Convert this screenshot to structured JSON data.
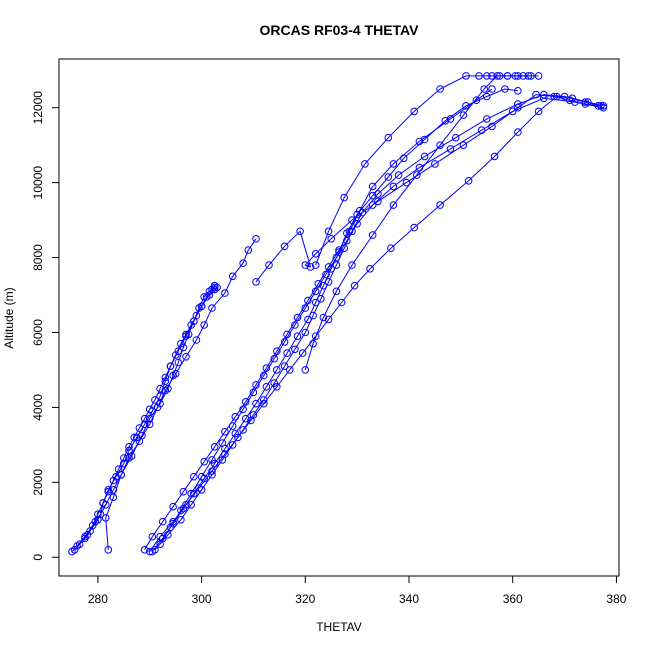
{
  "chart_data": {
    "type": "line",
    "title": "ORCAS RF03-4 THETAV",
    "xlabel": "THETAV",
    "ylabel": "Altitude (m)",
    "xlim": [
      272.5,
      380.5
    ],
    "ylim": [
      -500,
      13300
    ],
    "xticks": [
      280,
      300,
      320,
      340,
      360,
      380
    ],
    "yticks": [
      0,
      2000,
      4000,
      6000,
      8000,
      10000,
      12000
    ],
    "grid": false,
    "marker": "open-circle",
    "color": "#0000ff",
    "series": [
      {
        "x": [
          275,
          276.5,
          277.5,
          278.5,
          279.5,
          280.5,
          281,
          282,
          283,
          284,
          285,
          286,
          287,
          288,
          289,
          290,
          291,
          292,
          293,
          294,
          295,
          296,
          297,
          298,
          299,
          300,
          301,
          302,
          302.5
        ],
        "y": [
          150,
          350,
          500,
          700,
          950,
          1150,
          1450,
          1750,
          2050,
          2350,
          2650,
          2950,
          3200,
          3450,
          3700,
          3950,
          4200,
          4500,
          4800,
          5100,
          5400,
          5700,
          5950,
          6200,
          6450,
          6700,
          6950,
          7150,
          7250
        ]
      },
      {
        "x": [
          276,
          277.5,
          279,
          280,
          281,
          282,
          283.5,
          285,
          286,
          287.5,
          289,
          290.5,
          292,
          293,
          294,
          295.5,
          297,
          298.5,
          300,
          301.5,
          302.5
        ],
        "y": [
          300,
          550,
          850,
          1150,
          1450,
          1800,
          2150,
          2500,
          2850,
          3200,
          3550,
          3900,
          4300,
          4700,
          5100,
          5500,
          5900,
          6300,
          6700,
          7000,
          7200
        ]
      },
      {
        "x": [
          275.5,
          278,
          280,
          281.5,
          283,
          284.5,
          286,
          288,
          290,
          291.5,
          293,
          295,
          297,
          299,
          300.5,
          302,
          304.5,
          306,
          308,
          309,
          310.5
        ],
        "y": [
          200,
          600,
          1000,
          1400,
          1800,
          2200,
          2650,
          3100,
          3550,
          4000,
          4450,
          4900,
          5350,
          5800,
          6200,
          6650,
          7050,
          7500,
          7850,
          8200,
          8500
        ]
      },
      {
        "x": [
          282,
          281.5,
          283,
          284.5,
          286.5,
          288.5,
          290,
          292,
          293.5,
          294.5,
          295.5,
          296.5,
          297.5,
          298.5,
          299.5,
          300.5,
          301.5,
          302.5,
          303,
          302.5
        ],
        "y": [
          200,
          1050,
          1600,
          2200,
          2700,
          3250,
          3700,
          4100,
          4500,
          4850,
          5200,
          5600,
          5950,
          6300,
          6650,
          6950,
          7100,
          7250,
          7200,
          7150
        ]
      },
      {
        "x": [
          289,
          290.5,
          292.5,
          294.5,
          296.5,
          298.5,
          300.5,
          302.5,
          304.5,
          306.5,
          308.5,
          310.5,
          312.5,
          314.5,
          316.5,
          318.5,
          320.5,
          322.5,
          324.5,
          326.5,
          328.5,
          330.5,
          333,
          337,
          342,
          348,
          353,
          356
        ],
        "y": [
          200,
          550,
          950,
          1350,
          1750,
          2150,
          2550,
          2950,
          3350,
          3750,
          4150,
          4600,
          5050,
          5500,
          5950,
          6400,
          6850,
          7300,
          7750,
          8200,
          8700,
          9250,
          9900,
          10500,
          11100,
          11700,
          12200,
          12500
        ]
      },
      {
        "x": [
          290.5,
          292.5,
          294.5,
          296.5,
          298.5,
          300.5,
          302.5,
          304.5,
          306.5,
          308.5,
          310.5,
          312.5,
          314.5,
          316.5,
          318.5,
          320.5,
          322,
          323.5,
          325,
          326.5,
          328,
          330,
          333,
          336,
          339,
          343,
          347,
          351,
          355,
          358.5,
          361
        ],
        "y": [
          150,
          500,
          900,
          1300,
          1700,
          2100,
          2500,
          2900,
          3300,
          3700,
          4100,
          4550,
          5000,
          5450,
          5900,
          6350,
          6800,
          7250,
          7700,
          8150,
          8650,
          9150,
          9650,
          10150,
          10650,
          11150,
          11650,
          12050,
          12300,
          12500,
          12450
        ]
      },
      {
        "x": [
          291,
          293.5,
          296,
          298,
          300,
          302,
          304,
          306,
          308,
          310,
          312,
          314,
          316,
          318,
          320,
          321.5,
          323,
          324.5,
          326,
          327.5,
          329,
          331,
          334,
          338,
          343,
          349,
          355,
          361,
          366,
          370,
          374,
          377
        ],
        "y": [
          200,
          600,
          1000,
          1400,
          1800,
          2200,
          2600,
          3000,
          3400,
          3800,
          4200,
          4650,
          5100,
          5550,
          6000,
          6450,
          6900,
          7350,
          7800,
          8250,
          8700,
          9200,
          9700,
          10200,
          10700,
          11200,
          11700,
          12100,
          12350,
          12300,
          12150,
          12050
        ]
      },
      {
        "x": [
          290,
          292,
          294.5,
          297,
          299.5,
          302,
          304.5,
          307,
          309.5,
          312,
          314.5,
          317,
          319.5,
          322,
          324.5,
          327,
          329.5,
          332.5,
          336.5,
          341,
          346,
          351.5,
          356.5,
          361,
          365,
          368.5,
          371.5,
          374.5,
          377.5
        ],
        "y": [
          150,
          550,
          950,
          1400,
          1850,
          2300,
          2750,
          3200,
          3650,
          4100,
          4550,
          5000,
          5450,
          5900,
          6350,
          6800,
          7250,
          7700,
          8250,
          8800,
          9400,
          10050,
          10700,
          11350,
          11900,
          12300,
          12250,
          12150,
          12050
        ]
      },
      {
        "x": [
          292,
          294,
          296,
          298,
          300,
          302,
          304,
          306,
          308,
          310,
          312,
          314,
          316,
          318,
          320,
          322,
          324,
          326,
          328,
          330,
          333,
          337,
          342,
          348,
          354,
          360,
          366,
          372,
          377.5
        ],
        "y": [
          350,
          800,
          1250,
          1700,
          2150,
          2600,
          3050,
          3500,
          3950,
          4400,
          4850,
          5300,
          5750,
          6200,
          6650,
          7100,
          7550,
          8000,
          8450,
          8900,
          9400,
          9900,
          10400,
          10900,
          11400,
          11900,
          12250,
          12150,
          12000
        ]
      },
      {
        "x": [
          310.5,
          313,
          316,
          319,
          321,
          320,
          322,
          325,
          329,
          334,
          339.5,
          345,
          350.5,
          356,
          361,
          364.5,
          368,
          371,
          374,
          376.5
        ],
        "y": [
          7350,
          7800,
          8300,
          8700,
          7750,
          7800,
          8100,
          8500,
          9000,
          9500,
          10000,
          10500,
          11000,
          11500,
          12000,
          12350,
          12300,
          12200,
          12100,
          12050
        ]
      },
      {
        "x": [
          320,
          321.5,
          323.5,
          326,
          329,
          333,
          337,
          341.5,
          346,
          350.5,
          354.5,
          357,
          359,
          361,
          363,
          365
        ],
        "y": [
          5000,
          5700,
          6400,
          7100,
          7800,
          8600,
          9400,
          10200,
          11000,
          11800,
          12500,
          12850,
          12850,
          12850,
          12850,
          12850
        ]
      },
      {
        "x": [
          322,
          324.5,
          327.5,
          331.5,
          336,
          341,
          346,
          351,
          353.5,
          355,
          356,
          357.5,
          359,
          360.5,
          362,
          363.5
        ],
        "y": [
          7800,
          8700,
          9600,
          10500,
          11200,
          11900,
          12500,
          12850,
          12850,
          12850,
          12850,
          12850,
          12850,
          12850,
          12850,
          12850
        ]
      }
    ]
  }
}
